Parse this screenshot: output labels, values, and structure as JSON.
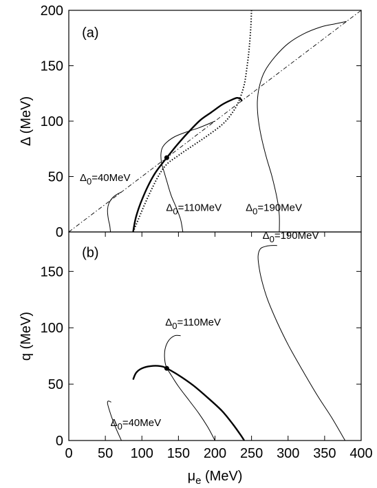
{
  "chart_data": [
    {
      "panel": "(a)",
      "type": "line",
      "ylabel": "Δ (MeV)",
      "xlim": [
        0,
        400
      ],
      "ylim": [
        0,
        200
      ],
      "yticks": [
        0,
        50,
        100,
        150,
        200
      ],
      "grid": false,
      "series": [
        {
          "style": "dashdot",
          "x": [
            0,
            400
          ],
          "y": [
            0,
            200
          ]
        },
        {
          "style": "dotted",
          "x": [
            88,
            110,
            130,
            150,
            170,
            190,
            210,
            222,
            232,
            240,
            244,
            247,
            249,
            250
          ],
          "y": [
            0,
            34,
            58,
            69,
            78,
            87,
            97,
            106,
            117,
            133,
            150,
            167,
            185,
            200
          ]
        },
        {
          "style": "thick",
          "x": [
            88,
            91,
            95,
            100,
            108,
            118,
            128,
            134,
            140,
            150,
            165,
            180,
            195,
            210,
            222,
            230,
            235,
            237
          ],
          "y": [
            0,
            11,
            20,
            29,
            41,
            53,
            62,
            67,
            72,
            80,
            91,
            101,
            108,
            115,
            119,
            121,
            120,
            118
          ]
        },
        {
          "label": "Δ0=40MeV",
          "x": [
            57,
            56,
            54,
            53,
            55,
            60,
            66,
            72
          ],
          "y": [
            0,
            6,
            12,
            20,
            26,
            31,
            34,
            36
          ]
        },
        {
          "label": "Δ0=110MeV",
          "x": [
            156,
            153,
            147,
            140,
            134,
            130,
            127,
            126,
            128,
            134,
            145,
            160,
            178,
            200
          ],
          "y": [
            0,
            11,
            22,
            33,
            46,
            55,
            62,
            70,
            76,
            81,
            86,
            90,
            94,
            100
          ]
        },
        {
          "label": "Δ0=190MeV",
          "x": [
            288,
            288,
            285,
            278,
            270,
            263,
            259,
            258,
            261,
            268,
            282,
            300,
            322,
            345,
            366,
            380
          ],
          "y": [
            0,
            15,
            30,
            50,
            68,
            87,
            103,
            118,
            132,
            145,
            158,
            170,
            179,
            185,
            188,
            190
          ]
        }
      ],
      "points": [
        {
          "x": 134,
          "y": 67
        }
      ],
      "annotations": [
        {
          "text": "(a)",
          "x": 18,
          "y": 180
        },
        {
          "text": "Δ0=40MeV",
          "x": 15,
          "y": 49
        },
        {
          "text": "Δ0=110MeV",
          "x": 133,
          "y": 22
        },
        {
          "text": "Δ0=190MeV",
          "x": 242,
          "y": 22
        }
      ]
    },
    {
      "panel": "(b)",
      "type": "line",
      "ylabel": "q (MeV)",
      "xlabel": "μe (MeV)",
      "xlim": [
        0,
        400
      ],
      "ylim": [
        0,
        185
      ],
      "xticks": [
        0,
        50,
        100,
        150,
        200,
        250,
        300,
        350,
        400
      ],
      "yticks": [
        0,
        50,
        100,
        150
      ],
      "grid": false,
      "series": [
        {
          "label": "Δ0=40MeV",
          "x": [
            72,
            65,
            59,
            55,
            53,
            54,
            58
          ],
          "y": [
            0,
            10,
            20,
            28,
            33,
            35,
            34
          ]
        },
        {
          "style": "thick",
          "x": [
            88,
            92,
            100,
            112,
            125,
            134,
            150,
            170,
            190,
            210,
            225,
            235,
            240
          ],
          "y": [
            54,
            60,
            64,
            66,
            66,
            64,
            58,
            49,
            38,
            26,
            14,
            5,
            0
          ]
        },
        {
          "label": "Δ0=110MeV",
          "x": [
            200,
            190,
            178,
            164,
            150,
            140,
            133,
            131,
            132,
            137,
            145,
            153
          ],
          "y": [
            0,
            12,
            24,
            36,
            48,
            58,
            66,
            74,
            82,
            89,
            93,
            93
          ]
        },
        {
          "label": "Δ0=190MeV",
          "x": [
            378,
            360,
            340,
            320,
            300,
            285,
            272,
            264,
            260,
            259,
            262,
            268,
            276,
            285
          ],
          "y": [
            0,
            20,
            40,
            62,
            85,
            105,
            125,
            142,
            155,
            164,
            170,
            172,
            173,
            173
          ]
        }
      ],
      "points": [
        {
          "x": 134,
          "y": 64
        }
      ],
      "annotations": [
        {
          "text": "(b)",
          "x": 18,
          "y": 167
        },
        {
          "text": "Δ0=40MeV",
          "x": 57,
          "y": 16
        },
        {
          "text": "Δ0=110MeV",
          "x": 132,
          "y": 105
        },
        {
          "text": "Δ0=190MeV",
          "x": 265,
          "y": 182
        }
      ]
    }
  ]
}
